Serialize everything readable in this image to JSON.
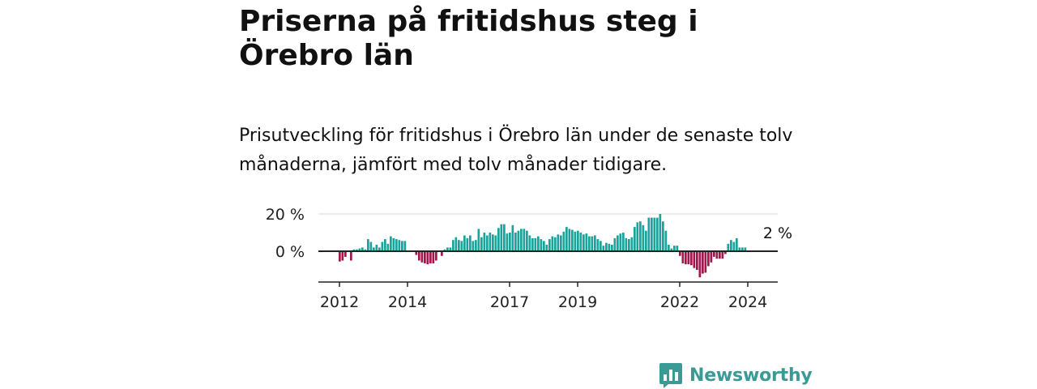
{
  "header": {
    "title": "Priserna på fritidshus steg i Örebro län",
    "subtitle": "Prisutveckling för fritidshus i Örebro län under de senaste tolv månaderna, jämfört med tolv månader tidigare."
  },
  "branding": {
    "name": "Newsworthy",
    "color": "#3a9a95",
    "logo_icon": "bar-chart-speech-bubble-icon"
  },
  "chart_data": {
    "type": "bar",
    "x_start": "2012-01",
    "x_end": "2024-12",
    "xtick_labels": [
      "2012",
      "2014",
      "2017",
      "2019",
      "2022",
      "2024"
    ],
    "ytick_labels": [
      "20 %",
      "0 %"
    ],
    "yticks": [
      20,
      0
    ],
    "ylim": [
      -16,
      22
    ],
    "grid": true,
    "positive_color": "#1aa39a",
    "negative_color": "#a3154b",
    "annotation": {
      "text": "2 %",
      "x": "2024-11",
      "y": 2
    },
    "series": [
      {
        "x": "2012-01",
        "y": -5.5
      },
      {
        "x": "2012-02",
        "y": -5
      },
      {
        "x": "2012-03",
        "y": -3
      },
      {
        "x": "2012-04",
        "y": 0
      },
      {
        "x": "2012-05",
        "y": -5
      },
      {
        "x": "2012-06",
        "y": 1
      },
      {
        "x": "2012-07",
        "y": 1
      },
      {
        "x": "2012-08",
        "y": 1.5
      },
      {
        "x": "2012-09",
        "y": 2
      },
      {
        "x": "2012-10",
        "y": 1
      },
      {
        "x": "2012-11",
        "y": 6.5
      },
      {
        "x": "2012-12",
        "y": 5
      },
      {
        "x": "2013-01",
        "y": 2
      },
      {
        "x": "2013-02",
        "y": 3.5
      },
      {
        "x": "2013-03",
        "y": 2
      },
      {
        "x": "2013-04",
        "y": 5
      },
      {
        "x": "2013-05",
        "y": 6.5
      },
      {
        "x": "2013-06",
        "y": 4
      },
      {
        "x": "2013-07",
        "y": 8
      },
      {
        "x": "2013-08",
        "y": 7
      },
      {
        "x": "2013-09",
        "y": 6.5
      },
      {
        "x": "2013-10",
        "y": 6
      },
      {
        "x": "2013-11",
        "y": 5.5
      },
      {
        "x": "2013-12",
        "y": 5.5
      },
      {
        "x": "2014-01",
        "y": 0
      },
      {
        "x": "2014-02",
        "y": 0
      },
      {
        "x": "2014-03",
        "y": 0
      },
      {
        "x": "2014-04",
        "y": -2
      },
      {
        "x": "2014-05",
        "y": -5
      },
      {
        "x": "2014-06",
        "y": -6
      },
      {
        "x": "2014-07",
        "y": -6.5
      },
      {
        "x": "2014-08",
        "y": -7
      },
      {
        "x": "2014-09",
        "y": -6.5
      },
      {
        "x": "2014-10",
        "y": -6.5
      },
      {
        "x": "2014-11",
        "y": -5
      },
      {
        "x": "2014-12",
        "y": 0
      },
      {
        "x": "2015-01",
        "y": -2.5
      },
      {
        "x": "2015-02",
        "y": 1
      },
      {
        "x": "2015-03",
        "y": 2
      },
      {
        "x": "2015-04",
        "y": 2
      },
      {
        "x": "2015-05",
        "y": 6
      },
      {
        "x": "2015-06",
        "y": 7.5
      },
      {
        "x": "2015-07",
        "y": 6
      },
      {
        "x": "2015-08",
        "y": 5.5
      },
      {
        "x": "2015-09",
        "y": 8.5
      },
      {
        "x": "2015-10",
        "y": 7
      },
      {
        "x": "2015-11",
        "y": 8.5
      },
      {
        "x": "2015-12",
        "y": 5.5
      },
      {
        "x": "2016-01",
        "y": 6
      },
      {
        "x": "2016-02",
        "y": 12
      },
      {
        "x": "2016-03",
        "y": 7.5
      },
      {
        "x": "2016-04",
        "y": 10
      },
      {
        "x": "2016-05",
        "y": 8.5
      },
      {
        "x": "2016-06",
        "y": 10
      },
      {
        "x": "2016-07",
        "y": 9
      },
      {
        "x": "2016-08",
        "y": 8.5
      },
      {
        "x": "2016-09",
        "y": 12.5
      },
      {
        "x": "2016-10",
        "y": 14.5
      },
      {
        "x": "2016-11",
        "y": 14.5
      },
      {
        "x": "2016-12",
        "y": 9.5
      },
      {
        "x": "2017-01",
        "y": 10
      },
      {
        "x": "2017-02",
        "y": 14
      },
      {
        "x": "2017-03",
        "y": 10
      },
      {
        "x": "2017-04",
        "y": 11
      },
      {
        "x": "2017-05",
        "y": 12
      },
      {
        "x": "2017-06",
        "y": 12
      },
      {
        "x": "2017-07",
        "y": 11
      },
      {
        "x": "2017-08",
        "y": 8.5
      },
      {
        "x": "2017-09",
        "y": 7
      },
      {
        "x": "2017-10",
        "y": 7
      },
      {
        "x": "2017-11",
        "y": 8
      },
      {
        "x": "2017-12",
        "y": 6.5
      },
      {
        "x": "2018-01",
        "y": 5.5
      },
      {
        "x": "2018-02",
        "y": 3.5
      },
      {
        "x": "2018-03",
        "y": 6.5
      },
      {
        "x": "2018-04",
        "y": 8
      },
      {
        "x": "2018-05",
        "y": 7.5
      },
      {
        "x": "2018-06",
        "y": 9
      },
      {
        "x": "2018-07",
        "y": 8.5
      },
      {
        "x": "2018-08",
        "y": 10.5
      },
      {
        "x": "2018-09",
        "y": 13
      },
      {
        "x": "2018-10",
        "y": 12
      },
      {
        "x": "2018-11",
        "y": 11.5
      },
      {
        "x": "2018-12",
        "y": 10.5
      },
      {
        "x": "2019-01",
        "y": 11
      },
      {
        "x": "2019-02",
        "y": 10
      },
      {
        "x": "2019-03",
        "y": 9
      },
      {
        "x": "2019-04",
        "y": 9.5
      },
      {
        "x": "2019-05",
        "y": 8
      },
      {
        "x": "2019-06",
        "y": 8
      },
      {
        "x": "2019-07",
        "y": 8.5
      },
      {
        "x": "2019-08",
        "y": 6.5
      },
      {
        "x": "2019-09",
        "y": 5.5
      },
      {
        "x": "2019-10",
        "y": 3
      },
      {
        "x": "2019-11",
        "y": 4.5
      },
      {
        "x": "2019-12",
        "y": 4
      },
      {
        "x": "2020-01",
        "y": 3.5
      },
      {
        "x": "2020-02",
        "y": 7
      },
      {
        "x": "2020-03",
        "y": 8.5
      },
      {
        "x": "2020-04",
        "y": 9.5
      },
      {
        "x": "2020-05",
        "y": 10
      },
      {
        "x": "2020-06",
        "y": 7
      },
      {
        "x": "2020-07",
        "y": 6.5
      },
      {
        "x": "2020-08",
        "y": 7.5
      },
      {
        "x": "2020-09",
        "y": 13
      },
      {
        "x": "2020-10",
        "y": 15.5
      },
      {
        "x": "2020-11",
        "y": 16
      },
      {
        "x": "2020-12",
        "y": 14
      },
      {
        "x": "2021-01",
        "y": 11
      },
      {
        "x": "2021-02",
        "y": 18
      },
      {
        "x": "2021-03",
        "y": 18
      },
      {
        "x": "2021-04",
        "y": 18
      },
      {
        "x": "2021-05",
        "y": 18
      },
      {
        "x": "2021-06",
        "y": 20
      },
      {
        "x": "2021-07",
        "y": 16
      },
      {
        "x": "2021-08",
        "y": 11
      },
      {
        "x": "2021-09",
        "y": 3.5
      },
      {
        "x": "2021-10",
        "y": 1.5
      },
      {
        "x": "2021-11",
        "y": 3
      },
      {
        "x": "2021-12",
        "y": 3
      },
      {
        "x": "2022-01",
        "y": -2.5
      },
      {
        "x": "2022-02",
        "y": -6.5
      },
      {
        "x": "2022-03",
        "y": -7
      },
      {
        "x": "2022-04",
        "y": -7
      },
      {
        "x": "2022-05",
        "y": -7.5
      },
      {
        "x": "2022-06",
        "y": -9
      },
      {
        "x": "2022-07",
        "y": -10
      },
      {
        "x": "2022-08",
        "y": -14
      },
      {
        "x": "2022-09",
        "y": -12
      },
      {
        "x": "2022-10",
        "y": -11.5
      },
      {
        "x": "2022-11",
        "y": -8
      },
      {
        "x": "2022-12",
        "y": -6
      },
      {
        "x": "2023-01",
        "y": -3
      },
      {
        "x": "2023-02",
        "y": -4
      },
      {
        "x": "2023-03",
        "y": -4
      },
      {
        "x": "2023-04",
        "y": -4
      },
      {
        "x": "2023-05",
        "y": -1.5
      },
      {
        "x": "2023-06",
        "y": 4
      },
      {
        "x": "2023-07",
        "y": 6
      },
      {
        "x": "2023-08",
        "y": 5
      },
      {
        "x": "2023-09",
        "y": 7
      },
      {
        "x": "2023-10",
        "y": 2
      },
      {
        "x": "2023-11",
        "y": 2
      },
      {
        "x": "2023-12",
        "y": 2
      }
    ]
  }
}
